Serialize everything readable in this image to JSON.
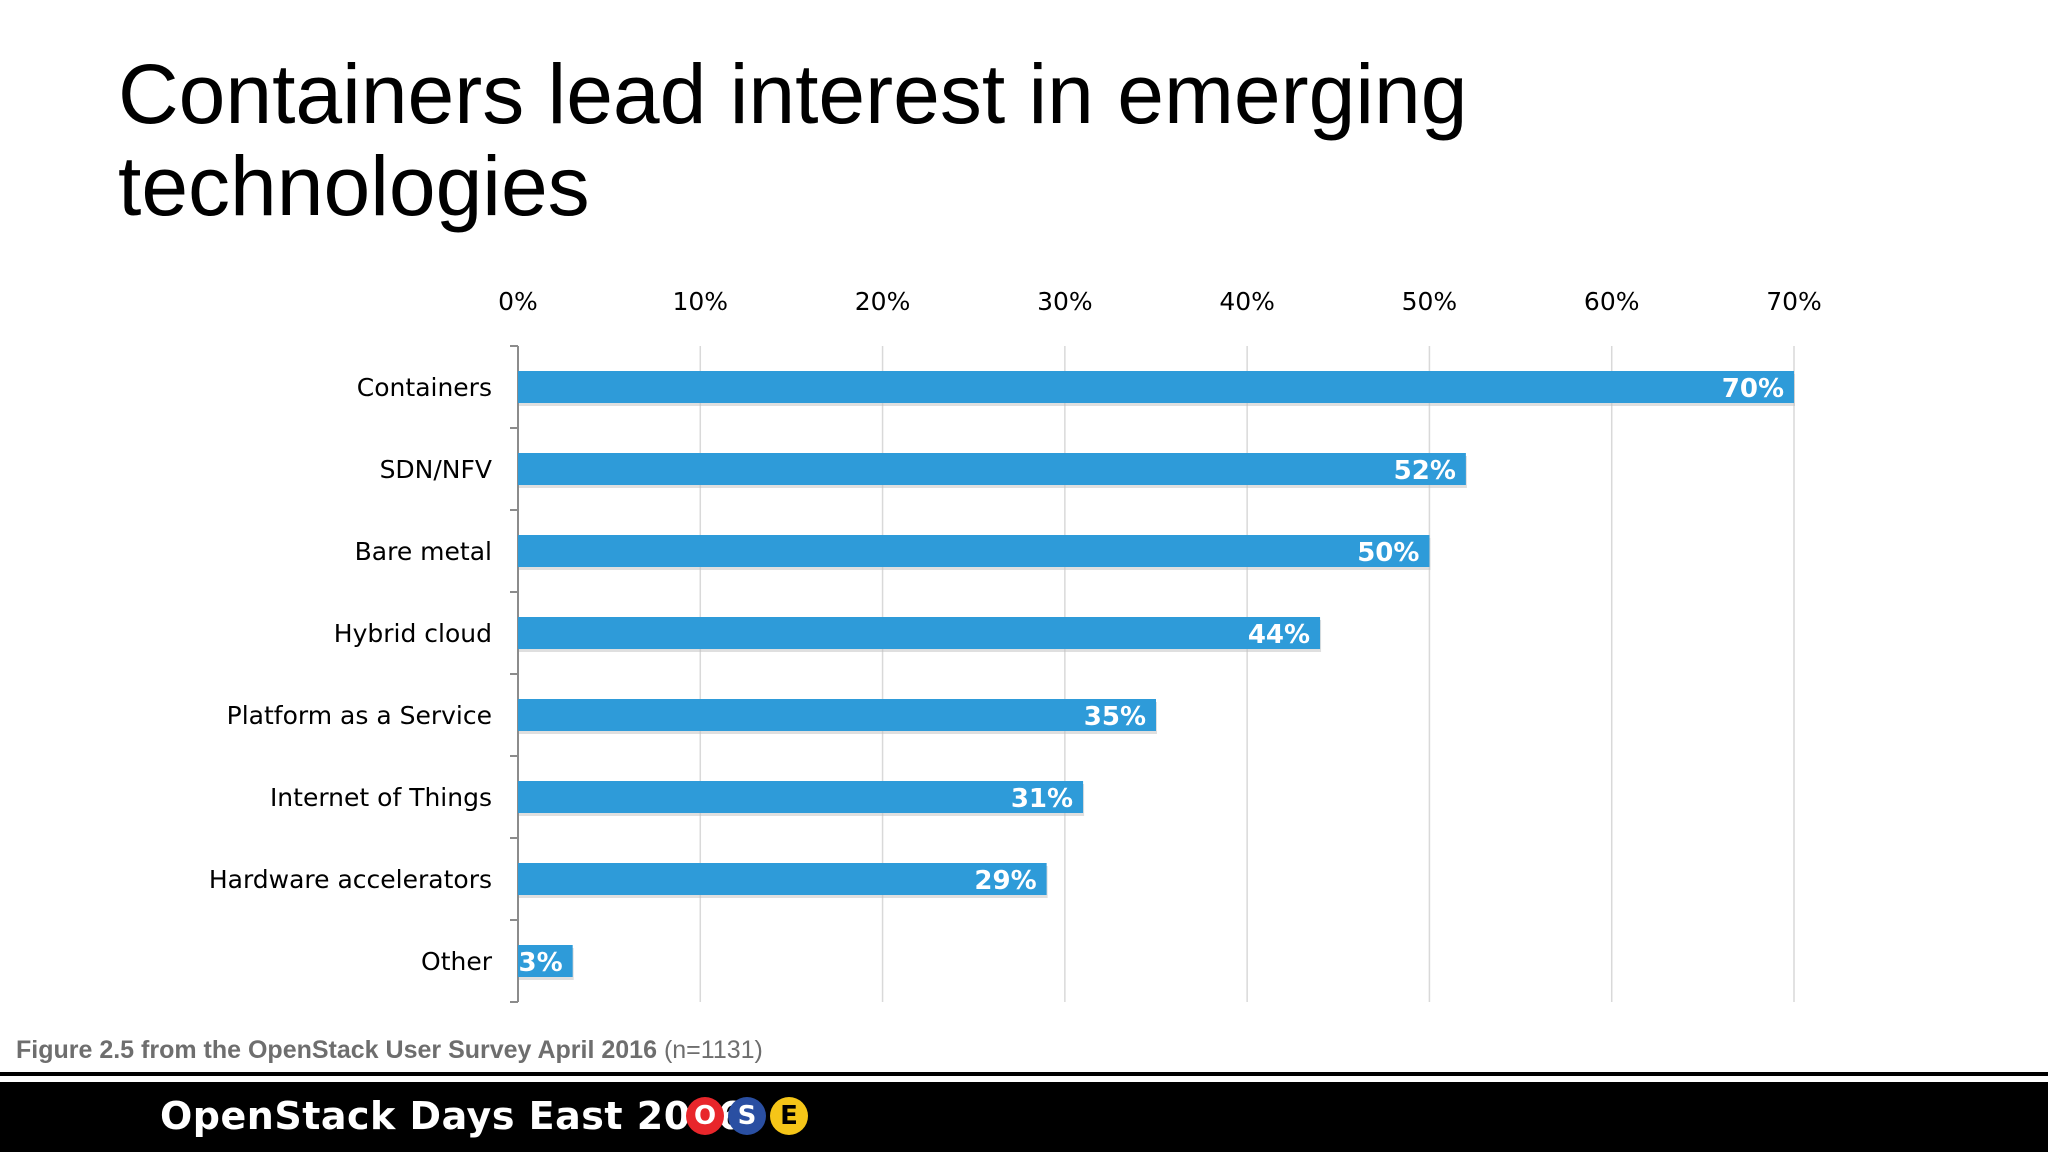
{
  "slide": {
    "title_line1": "Containers lead interest in emerging",
    "title_line2": "technologies",
    "caption_bold": "Figure 2.5 from the OpenStack User Survey April 2016",
    "caption_note": "(n=1131)",
    "footer_text": "OpenStack Days East 2016",
    "badges": [
      {
        "letter": "O",
        "color": "#e8262b",
        "text_color": "#ffffff"
      },
      {
        "letter": "S",
        "color": "#2a4fa2",
        "text_color": "#ffffff"
      },
      {
        "letter": "E",
        "color": "#f5c518",
        "text_color": "#000000"
      }
    ]
  },
  "chart_data": {
    "type": "bar",
    "orientation": "horizontal",
    "categories": [
      "Containers",
      "SDN/NFV",
      "Bare metal",
      "Hybrid cloud",
      "Platform as a Service",
      "Internet of Things",
      "Hardware accelerators",
      "Other"
    ],
    "values": [
      70,
      52,
      50,
      44,
      35,
      31,
      29,
      3
    ],
    "value_labels": [
      "70%",
      "52%",
      "50%",
      "44%",
      "35%",
      "31%",
      "29%",
      "3%"
    ],
    "xlim": [
      0,
      70
    ],
    "x_ticks": [
      "0%",
      "10%",
      "20%",
      "30%",
      "40%",
      "50%",
      "60%",
      "70%"
    ],
    "x_axis_position": "top",
    "grid": true,
    "legend": "none",
    "bar_color": "#2e9bd9",
    "label_color": "#ffffff"
  }
}
